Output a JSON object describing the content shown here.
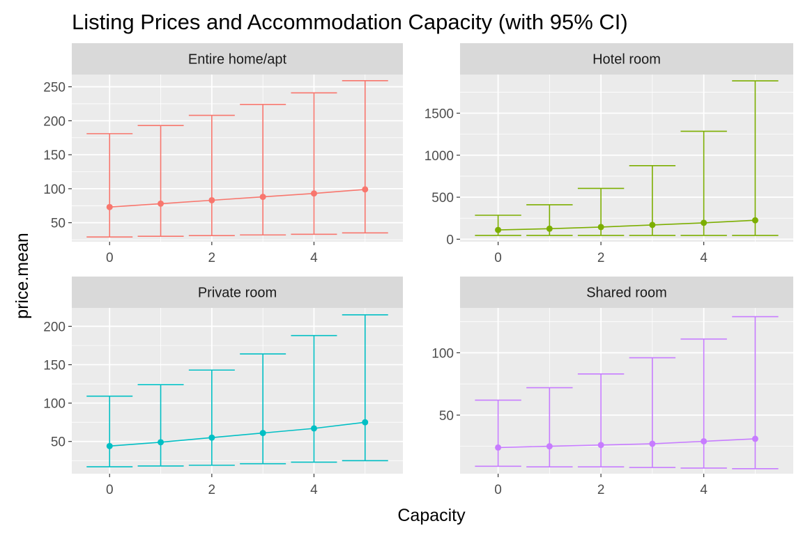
{
  "chart_data": {
    "type": "line",
    "title": "Listing Prices and Accommodation Capacity (with 95% CI)",
    "xlabel": "Capacity",
    "ylabel": "price.mean",
    "x": [
      0,
      1,
      2,
      3,
      4,
      5
    ],
    "grid": true,
    "legend": "none",
    "facets": [
      {
        "name": "Entire home/apt",
        "color": "#F8766D",
        "ylim": [
          22,
          268
        ],
        "yticks": [
          50,
          100,
          150,
          200,
          250
        ],
        "xticks": [
          0,
          2,
          4
        ],
        "mean": [
          73,
          78,
          83,
          88,
          93,
          99
        ],
        "lower": [
          29,
          30,
          31,
          32,
          33,
          35
        ],
        "upper": [
          181,
          193,
          208,
          224,
          241,
          259
        ]
      },
      {
        "name": "Hotel room",
        "color": "#7CAE00",
        "ylim": [
          -30,
          1960
        ],
        "yticks": [
          0,
          500,
          1000,
          1500
        ],
        "xticks": [
          0,
          2,
          4
        ],
        "mean": [
          110,
          125,
          145,
          170,
          195,
          225
        ],
        "lower": [
          45,
          45,
          45,
          45,
          45,
          45
        ],
        "upper": [
          285,
          410,
          605,
          875,
          1285,
          1885
        ]
      },
      {
        "name": "Private room",
        "color": "#00BFC4",
        "ylim": [
          8,
          224
        ],
        "yticks": [
          50,
          100,
          150,
          200
        ],
        "xticks": [
          0,
          2,
          4
        ],
        "mean": [
          44,
          49,
          55,
          61,
          67,
          75
        ],
        "lower": [
          17,
          18,
          19,
          21,
          23,
          25
        ],
        "upper": [
          109,
          124,
          143,
          164,
          188,
          215
        ]
      },
      {
        "name": "Shared room",
        "color": "#C77CFF",
        "ylim": [
          3,
          136
        ],
        "yticks": [
          50,
          100
        ],
        "xticks": [
          0,
          2,
          4
        ],
        "mean": [
          24,
          25,
          26,
          27,
          29,
          31
        ],
        "lower": [
          9,
          8.5,
          8.5,
          8,
          7.5,
          7
        ],
        "upper": [
          62,
          72,
          83,
          96,
          111,
          129
        ]
      }
    ]
  }
}
